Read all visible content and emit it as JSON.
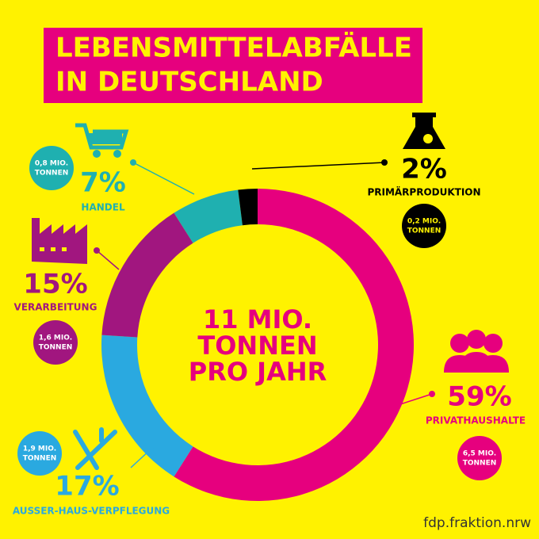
{
  "chart_data": {
    "type": "donut",
    "title": [
      "LEBENSMITTELABFÄLLE",
      "IN DEUTSCHLAND"
    ],
    "center_text": [
      "11 MIO.",
      "TONNEN",
      "PRO JAHR"
    ],
    "categories": [
      "PRIVATHAUSHALTE",
      "AUSSER-HAUS-VERPFLEGUNG",
      "VERARBEITUNG",
      "HANDEL",
      "PRIMÄRPRODUKTION"
    ],
    "values": [
      59,
      17,
      15,
      7,
      2
    ],
    "value_labels": [
      "59%",
      "17%",
      "15%",
      "7%",
      "2%"
    ],
    "amount_labels": [
      [
        "6,5 MIO.",
        "TONNEN"
      ],
      [
        "1,9 MIO.",
        "TONNEN"
      ],
      [
        "1,6 MIO.",
        "TONNEN"
      ],
      [
        "0,8 MIO.",
        "TONNEN"
      ],
      [
        "0,2 MIO.",
        "TONNEN"
      ]
    ],
    "colors": [
      "#e6007e",
      "#2aa9e0",
      "#a1167f",
      "#1fb0b0",
      "#000000"
    ],
    "footer": "fdp.fraktion.nrw"
  }
}
